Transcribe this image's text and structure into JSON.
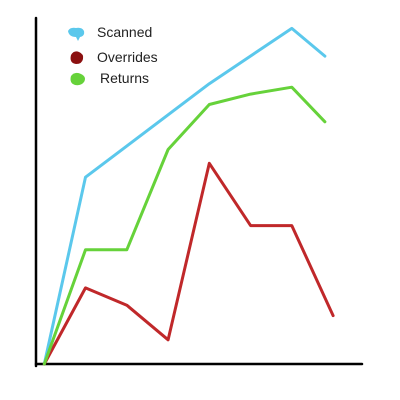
{
  "chart_data": {
    "type": "line",
    "title": "",
    "xlabel": "",
    "ylabel": "",
    "x": [
      0,
      1,
      2,
      3,
      4,
      5,
      6,
      7
    ],
    "xlim": [
      -0.2,
      7.7
    ],
    "ylim": [
      0,
      100
    ],
    "grid": false,
    "legend": "top-left",
    "series": [
      {
        "name": "Scanned",
        "color": "#5bc8ec",
        "marker_icon": "cloud-blob-icon",
        "x": [
          0,
          1,
          4,
          6,
          6.8
        ],
        "values": [
          0,
          54,
          81,
          97,
          89
        ]
      },
      {
        "name": "Overrides",
        "color": "#c0282a",
        "marker_icon": "blob-icon",
        "x": [
          0,
          1,
          2,
          3,
          4,
          5,
          6,
          7
        ],
        "values": [
          0,
          22,
          17,
          7,
          58,
          40,
          40,
          14
        ]
      },
      {
        "name": "Returns",
        "color": "#66d23a",
        "marker_icon": "blob-icon",
        "x": [
          0,
          1,
          2,
          3,
          4,
          5,
          6,
          6.8
        ],
        "values": [
          0,
          33,
          33,
          62,
          75,
          78,
          80,
          70
        ]
      }
    ],
    "legend_swatch_colors": {
      "Scanned": "#5bc8ec",
      "Overrides": "#8b1010",
      "Returns": "#66d23a"
    }
  }
}
